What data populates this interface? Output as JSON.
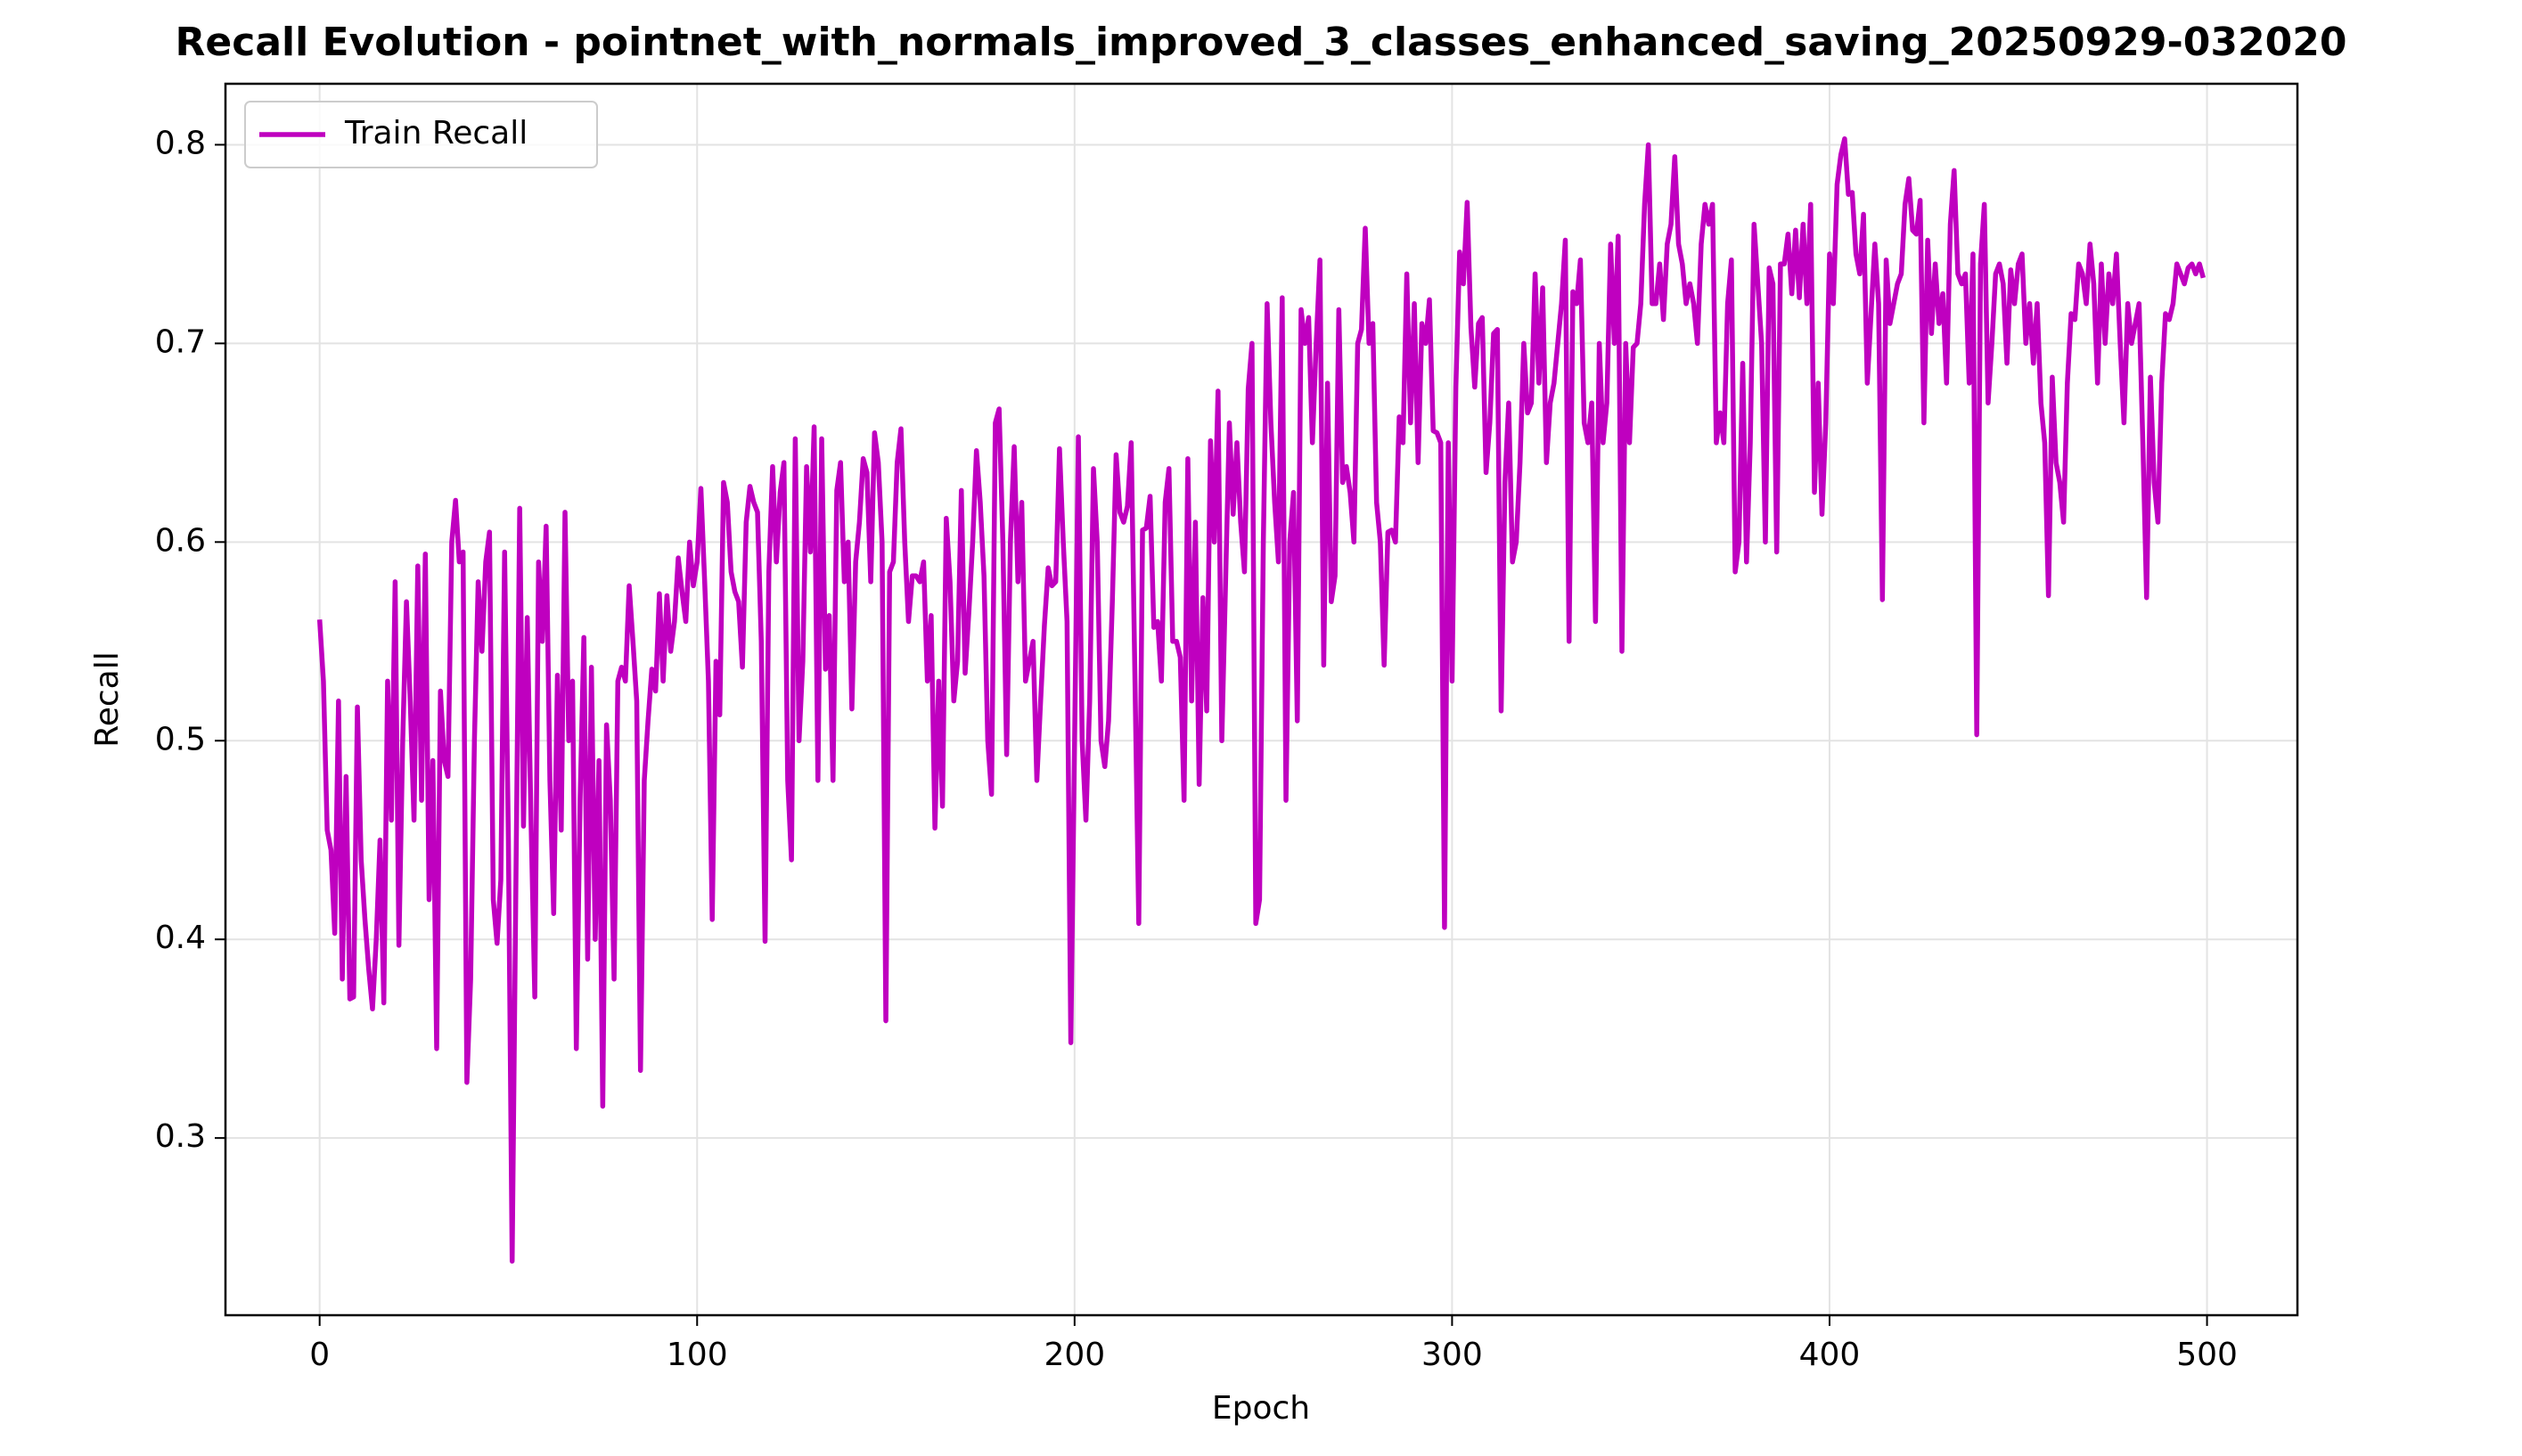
{
  "chart_data": {
    "type": "line",
    "title": "Recall Evolution - pointnet_with_normals_improved_3_classes_enhanced_saving_20250929-032020",
    "x_label": "Epoch",
    "y_label": "Recall",
    "x": [
      0,
      1,
      2,
      3,
      4,
      5,
      6,
      7,
      8,
      9,
      10,
      11,
      12,
      13,
      14,
      15,
      16,
      17,
      18,
      19,
      20,
      21,
      22,
      23,
      24,
      25,
      26,
      27,
      28,
      29,
      30,
      31,
      32,
      33,
      34,
      35,
      36,
      37,
      38,
      39,
      40,
      41,
      42,
      43,
      44,
      45,
      46,
      47,
      48,
      49,
      50,
      51,
      52,
      53,
      54,
      55,
      56,
      57,
      58,
      59,
      60,
      61,
      62,
      63,
      64,
      65,
      66,
      67,
      68,
      69,
      70,
      71,
      72,
      73,
      74,
      75,
      76,
      77,
      78,
      79,
      80,
      81,
      82,
      83,
      84,
      85,
      86,
      87,
      88,
      89,
      90,
      91,
      92,
      93,
      94,
      95,
      96,
      97,
      98,
      99,
      100,
      101,
      102,
      103,
      104,
      105,
      106,
      107,
      108,
      109,
      110,
      111,
      112,
      113,
      114,
      115,
      116,
      117,
      118,
      119,
      120,
      121,
      122,
      123,
      124,
      125,
      126,
      127,
      128,
      129,
      130,
      131,
      132,
      133,
      134,
      135,
      136,
      137,
      138,
      139,
      140,
      141,
      142,
      143,
      144,
      145,
      146,
      147,
      148,
      149,
      150,
      151,
      152,
      153,
      154,
      155,
      156,
      157,
      158,
      159,
      160,
      161,
      162,
      163,
      164,
      165,
      166,
      167,
      168,
      169,
      170,
      171,
      172,
      173,
      174,
      175,
      176,
      177,
      178,
      179,
      180,
      181,
      182,
      183,
      184,
      185,
      186,
      187,
      188,
      189,
      190,
      191,
      192,
      193,
      194,
      195,
      196,
      197,
      198,
      199,
      200,
      201,
      202,
      203,
      204,
      205,
      206,
      207,
      208,
      209,
      210,
      211,
      212,
      213,
      214,
      215,
      216,
      217,
      218,
      219,
      220,
      221,
      222,
      223,
      224,
      225,
      226,
      227,
      228,
      229,
      230,
      231,
      232,
      233,
      234,
      235,
      236,
      237,
      238,
      239,
      240,
      241,
      242,
      243,
      244,
      245,
      246,
      247,
      248,
      249,
      250,
      251,
      252,
      253,
      254,
      255,
      256,
      257,
      258,
      259,
      260,
      261,
      262,
      263,
      264,
      265,
      266,
      267,
      268,
      269,
      270,
      271,
      272,
      273,
      274,
      275,
      276,
      277,
      278,
      279,
      280,
      281,
      282,
      283,
      284,
      285,
      286,
      287,
      288,
      289,
      290,
      291,
      292,
      293,
      294,
      295,
      296,
      297,
      298,
      299,
      300,
      301,
      302,
      303,
      304,
      305,
      306,
      307,
      308,
      309,
      310,
      311,
      312,
      313,
      314,
      315,
      316,
      317,
      318,
      319,
      320,
      321,
      322,
      323,
      324,
      325,
      326,
      327,
      328,
      329,
      330,
      331,
      332,
      333,
      334,
      335,
      336,
      337,
      338,
      339,
      340,
      341,
      342,
      343,
      344,
      345,
      346,
      347,
      348,
      349,
      350,
      351,
      352,
      353,
      354,
      355,
      356,
      357,
      358,
      359,
      360,
      361,
      362,
      363,
      364,
      365,
      366,
      367,
      368,
      369,
      370,
      371,
      372,
      373,
      374,
      375,
      376,
      377,
      378,
      379,
      380,
      381,
      382,
      383,
      384,
      385,
      386,
      387,
      388,
      389,
      390,
      391,
      392,
      393,
      394,
      395,
      396,
      397,
      398,
      399,
      400,
      401,
      402,
      403,
      404,
      405,
      406,
      407,
      408,
      409,
      410,
      411,
      412,
      413,
      414,
      415,
      416,
      417,
      418,
      419,
      420,
      421,
      422,
      423,
      424,
      425,
      426,
      427,
      428,
      429,
      430,
      431,
      432,
      433,
      434,
      435,
      436,
      437,
      438,
      439,
      440,
      441,
      442,
      443,
      444,
      445,
      446,
      447,
      448,
      449,
      450,
      451,
      452,
      453,
      454,
      455,
      456,
      457,
      458,
      459,
      460,
      461,
      462,
      463,
      464,
      465,
      466,
      467,
      468,
      469,
      470,
      471,
      472,
      473,
      474,
      475,
      476,
      477,
      478,
      479,
      480,
      481,
      482,
      483,
      484,
      485,
      486,
      487,
      488,
      489,
      490,
      491,
      492,
      493,
      494,
      495,
      496,
      497,
      498,
      499
    ],
    "series": [
      {
        "name": "Train Recall",
        "color": "#bf00bf",
        "values": [
          0.561,
          0.53,
          0.455,
          0.445,
          0.403,
          0.52,
          0.38,
          0.482,
          0.37,
          0.371,
          0.517,
          0.44,
          0.41,
          0.385,
          0.365,
          0.4,
          0.45,
          0.368,
          0.53,
          0.46,
          0.58,
          0.397,
          0.5,
          0.57,
          0.52,
          0.46,
          0.588,
          0.47,
          0.594,
          0.42,
          0.49,
          0.345,
          0.525,
          0.49,
          0.482,
          0.6,
          0.621,
          0.59,
          0.595,
          0.328,
          0.38,
          0.5,
          0.58,
          0.545,
          0.59,
          0.605,
          0.42,
          0.398,
          0.43,
          0.595,
          0.45,
          0.238,
          0.43,
          0.617,
          0.457,
          0.562,
          0.46,
          0.371,
          0.59,
          0.55,
          0.608,
          0.48,
          0.413,
          0.533,
          0.455,
          0.615,
          0.5,
          0.53,
          0.345,
          0.47,
          0.552,
          0.39,
          0.537,
          0.4,
          0.49,
          0.316,
          0.508,
          0.47,
          0.38,
          0.53,
          0.537,
          0.53,
          0.578,
          0.55,
          0.52,
          0.334,
          0.48,
          0.51,
          0.536,
          0.525,
          0.574,
          0.53,
          0.573,
          0.545,
          0.56,
          0.592,
          0.575,
          0.56,
          0.6,
          0.578,
          0.59,
          0.627,
          0.58,
          0.53,
          0.41,
          0.54,
          0.513,
          0.63,
          0.62,
          0.585,
          0.575,
          0.57,
          0.537,
          0.61,
          0.628,
          0.62,
          0.615,
          0.55,
          0.399,
          0.585,
          0.638,
          0.59,
          0.625,
          0.64,
          0.48,
          0.44,
          0.652,
          0.5,
          0.54,
          0.638,
          0.595,
          0.658,
          0.48,
          0.652,
          0.536,
          0.563,
          0.48,
          0.626,
          0.64,
          0.58,
          0.6,
          0.516,
          0.59,
          0.61,
          0.642,
          0.635,
          0.58,
          0.655,
          0.64,
          0.6,
          0.359,
          0.585,
          0.59,
          0.64,
          0.657,
          0.6,
          0.56,
          0.583,
          0.583,
          0.58,
          0.59,
          0.53,
          0.563,
          0.456,
          0.53,
          0.467,
          0.612,
          0.58,
          0.52,
          0.54,
          0.626,
          0.534,
          0.565,
          0.6,
          0.646,
          0.62,
          0.583,
          0.5,
          0.473,
          0.66,
          0.667,
          0.6,
          0.493,
          0.6,
          0.648,
          0.58,
          0.62,
          0.53,
          0.54,
          0.55,
          0.48,
          0.52,
          0.558,
          0.587,
          0.578,
          0.58,
          0.647,
          0.6,
          0.56,
          0.348,
          0.5,
          0.653,
          0.5,
          0.46,
          0.52,
          0.637,
          0.6,
          0.5,
          0.487,
          0.51,
          0.57,
          0.644,
          0.615,
          0.61,
          0.618,
          0.65,
          0.53,
          0.408,
          0.606,
          0.607,
          0.623,
          0.557,
          0.56,
          0.53,
          0.62,
          0.637,
          0.55,
          0.55,
          0.542,
          0.47,
          0.642,
          0.52,
          0.61,
          0.478,
          0.572,
          0.515,
          0.651,
          0.6,
          0.676,
          0.5,
          0.58,
          0.66,
          0.614,
          0.65,
          0.61,
          0.585,
          0.677,
          0.7,
          0.408,
          0.42,
          0.6,
          0.72,
          0.66,
          0.62,
          0.59,
          0.723,
          0.47,
          0.6,
          0.625,
          0.51,
          0.717,
          0.7,
          0.713,
          0.65,
          0.7,
          0.742,
          0.538,
          0.68,
          0.57,
          0.583,
          0.717,
          0.63,
          0.638,
          0.625,
          0.6,
          0.7,
          0.707,
          0.758,
          0.7,
          0.71,
          0.62,
          0.6,
          0.538,
          0.605,
          0.606,
          0.6,
          0.663,
          0.65,
          0.735,
          0.66,
          0.72,
          0.64,
          0.71,
          0.7,
          0.722,
          0.656,
          0.655,
          0.65,
          0.406,
          0.65,
          0.53,
          0.678,
          0.746,
          0.73,
          0.771,
          0.708,
          0.678,
          0.71,
          0.713,
          0.635,
          0.66,
          0.705,
          0.707,
          0.515,
          0.63,
          0.67,
          0.59,
          0.6,
          0.64,
          0.7,
          0.665,
          0.67,
          0.735,
          0.68,
          0.728,
          0.64,
          0.67,
          0.68,
          0.7,
          0.72,
          0.752,
          0.55,
          0.726,
          0.72,
          0.742,
          0.66,
          0.65,
          0.67,
          0.56,
          0.7,
          0.65,
          0.67,
          0.75,
          0.7,
          0.754,
          0.545,
          0.7,
          0.65,
          0.698,
          0.7,
          0.72,
          0.77,
          0.8,
          0.72,
          0.72,
          0.74,
          0.712,
          0.75,
          0.76,
          0.794,
          0.75,
          0.74,
          0.72,
          0.73,
          0.72,
          0.7,
          0.75,
          0.77,
          0.76,
          0.77,
          0.65,
          0.665,
          0.65,
          0.72,
          0.742,
          0.585,
          0.6,
          0.69,
          0.59,
          0.65,
          0.76,
          0.73,
          0.7,
          0.6,
          0.738,
          0.73,
          0.595,
          0.74,
          0.74,
          0.755,
          0.725,
          0.757,
          0.723,
          0.76,
          0.72,
          0.77,
          0.625,
          0.68,
          0.614,
          0.66,
          0.745,
          0.72,
          0.78,
          0.795,
          0.803,
          0.775,
          0.776,
          0.745,
          0.735,
          0.765,
          0.68,
          0.715,
          0.75,
          0.72,
          0.571,
          0.742,
          0.71,
          0.72,
          0.73,
          0.735,
          0.77,
          0.783,
          0.757,
          0.755,
          0.772,
          0.66,
          0.752,
          0.705,
          0.74,
          0.71,
          0.725,
          0.68,
          0.76,
          0.787,
          0.735,
          0.73,
          0.735,
          0.68,
          0.745,
          0.503,
          0.74,
          0.77,
          0.67,
          0.7,
          0.735,
          0.74,
          0.73,
          0.69,
          0.737,
          0.72,
          0.74,
          0.745,
          0.7,
          0.72,
          0.69,
          0.72,
          0.67,
          0.65,
          0.573,
          0.683,
          0.64,
          0.63,
          0.61,
          0.68,
          0.715,
          0.712,
          0.74,
          0.735,
          0.72,
          0.75,
          0.73,
          0.68,
          0.74,
          0.7,
          0.735,
          0.72,
          0.745,
          0.7,
          0.66,
          0.72,
          0.7,
          0.71,
          0.72,
          0.65,
          0.572,
          0.683,
          0.63,
          0.61,
          0.68,
          0.715,
          0.712,
          0.72,
          0.74,
          0.735,
          0.73,
          0.738,
          0.74,
          0.735,
          0.74,
          0.733
        ]
      }
    ],
    "xlim": [
      -24.95,
      523.95
    ],
    "xticks": [
      0,
      100,
      200,
      300,
      400,
      500
    ],
    "ylim": [
      0.2108,
      0.8307
    ],
    "yticks": [
      0.3,
      0.4,
      0.5,
      0.6,
      0.7,
      0.8
    ],
    "grid": true,
    "legend": "upper left"
  }
}
